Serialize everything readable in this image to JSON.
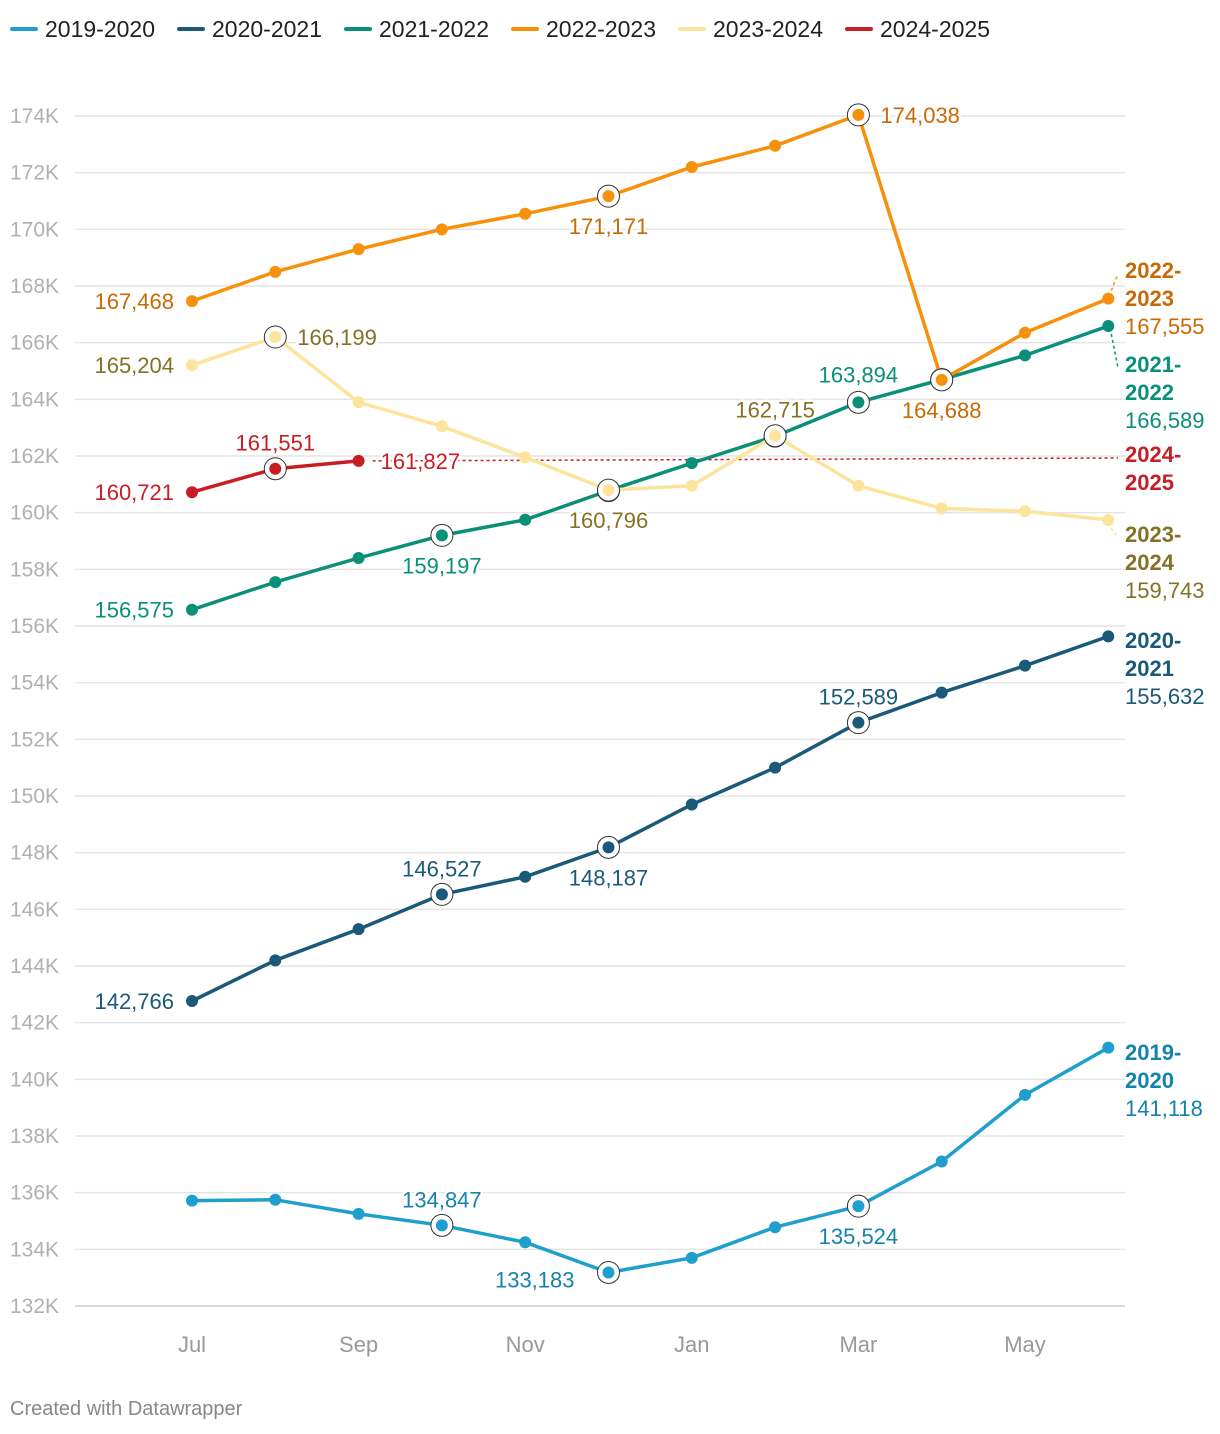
{
  "footer": "Created with Datawrapper",
  "chart_data": {
    "type": "line",
    "title": "",
    "xlabel": "",
    "ylabel": "",
    "categories": [
      "Jul",
      "Aug",
      "Sep",
      "Oct",
      "Nov",
      "Dec",
      "Jan",
      "Feb",
      "Mar",
      "Apr",
      "May",
      "Jun"
    ],
    "x_tick_labels": [
      "Jul",
      "Sep",
      "Nov",
      "Jan",
      "Mar",
      "May"
    ],
    "ylim": [
      132000,
      174000
    ],
    "y_ticks": [
      132000,
      134000,
      136000,
      138000,
      140000,
      142000,
      144000,
      146000,
      148000,
      150000,
      152000,
      154000,
      156000,
      158000,
      160000,
      162000,
      164000,
      166000,
      168000,
      170000,
      172000,
      174000
    ],
    "y_tick_labels": [
      "132K",
      "134K",
      "136K",
      "138K",
      "140K",
      "142K",
      "144K",
      "146K",
      "148K",
      "150K",
      "152K",
      "154K",
      "156K",
      "158K",
      "160K",
      "162K",
      "164K",
      "166K",
      "168K",
      "170K",
      "172K",
      "174K"
    ],
    "grid": true,
    "legend": "top-left",
    "series": [
      {
        "name": "2019-2020",
        "color": "#1f9fcd",
        "label_color": "#1382ad",
        "end_label_lines": [
          "2019-",
          "2020"
        ],
        "end_value": "141,118",
        "values": [
          135720,
          135750,
          135250,
          134847,
          134250,
          133183,
          133700,
          134780,
          135524,
          137100,
          139450,
          141118
        ],
        "highlight_points": [
          3,
          5,
          8
        ],
        "annotations": [
          {
            "index": 3,
            "text": "134,847",
            "pos": "above"
          },
          {
            "index": 5,
            "text": "133,183",
            "pos": "below-left"
          },
          {
            "index": 8,
            "text": "135,524",
            "pos": "below"
          }
        ]
      },
      {
        "name": "2020-2021",
        "color": "#1a5a78",
        "label_color": "#1a5a78",
        "end_label_lines": [
          "2020-",
          "2021"
        ],
        "end_value": "155,632",
        "values": [
          142766,
          144200,
          145300,
          146527,
          147150,
          148187,
          149700,
          151000,
          152589,
          153650,
          154600,
          155632
        ],
        "highlight_points": [
          3,
          5,
          8
        ],
        "annotations": [
          {
            "index": 0,
            "text": "142,766",
            "pos": "left"
          },
          {
            "index": 3,
            "text": "146,527",
            "pos": "above"
          },
          {
            "index": 5,
            "text": "148,187",
            "pos": "below"
          },
          {
            "index": 8,
            "text": "152,589",
            "pos": "above"
          }
        ]
      },
      {
        "name": "2021-2022",
        "color": "#0a8f78",
        "label_color": "#0a8f78",
        "end_label_lines": [
          "2021-",
          "2022"
        ],
        "end_value": "166,589",
        "values": [
          156575,
          157550,
          158400,
          159197,
          159750,
          160780,
          161750,
          162700,
          163894,
          164700,
          165550,
          166589
        ],
        "highlight_points": [
          3,
          5,
          7,
          8,
          9
        ],
        "annotations": [
          {
            "index": 0,
            "text": "156,575",
            "pos": "left"
          },
          {
            "index": 3,
            "text": "159,197",
            "pos": "below"
          },
          {
            "index": 8,
            "text": "163,894",
            "pos": "above-left"
          }
        ]
      },
      {
        "name": "2022-2023",
        "color": "#f7900a",
        "label_color": "#c76a06",
        "end_label_lines": [
          "2022-",
          "2023"
        ],
        "end_value": "167,555",
        "values": [
          167468,
          168500,
          169300,
          170000,
          170550,
          171171,
          172200,
          172950,
          174038,
          164688,
          166350,
          167555
        ],
        "highlight_points": [
          5,
          8,
          9
        ],
        "annotations": [
          {
            "index": 0,
            "text": "167,468",
            "pos": "left"
          },
          {
            "index": 5,
            "text": "171,171",
            "pos": "below"
          },
          {
            "index": 8,
            "text": "174,038",
            "pos": "right"
          },
          {
            "index": 9,
            "text": "164,688",
            "pos": "below"
          }
        ]
      },
      {
        "name": "2023-2024",
        "color": "#fde49c",
        "label_color": "#857126",
        "end_label_lines": [
          "2023-",
          "2024"
        ],
        "end_value": "159,743",
        "values": [
          165204,
          166199,
          163900,
          163050,
          161950,
          160796,
          160950,
          162715,
          160950,
          160150,
          160050,
          159743
        ],
        "highlight_points": [
          1,
          5,
          7
        ],
        "annotations": [
          {
            "index": 0,
            "text": "165,204",
            "pos": "left"
          },
          {
            "index": 1,
            "text": "166,199",
            "pos": "right"
          },
          {
            "index": 5,
            "text": "160,796",
            "pos": "below"
          },
          {
            "index": 7,
            "text": "162,715",
            "pos": "above"
          }
        ]
      },
      {
        "name": "2024-2025",
        "color": "#c71e24",
        "label_color": "#c71e24",
        "end_label_lines": [
          "2024-",
          "2025"
        ],
        "end_value": null,
        "values": [
          160721,
          161551,
          161827,
          null,
          null,
          null,
          null,
          null,
          null,
          null,
          null,
          null
        ],
        "highlight_points": [
          1
        ],
        "annotations": [
          {
            "index": 0,
            "text": "160,721",
            "pos": "left"
          },
          {
            "index": 1,
            "text": "161,551",
            "pos": "above"
          },
          {
            "index": 2,
            "text": "161,827",
            "pos": "right"
          }
        ]
      }
    ]
  }
}
